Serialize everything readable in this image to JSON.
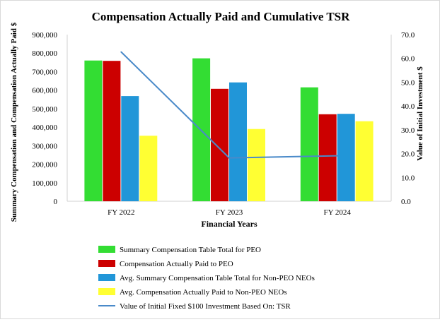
{
  "chart_data": {
    "type": "bar",
    "title": "Compensation Actually Paid and Cumulative TSR",
    "xlabel": "Financial Years",
    "ylabel": "Summary Compensation and Compensation Actually Paid $",
    "y2label": "Value of Initial Investment $",
    "categories": [
      "FY 2022",
      "FY 2023",
      "FY 2024"
    ],
    "ylim": [
      0,
      900000
    ],
    "y_ticks": [
      "0",
      "100,000",
      "200,000",
      "300,000",
      "400,000",
      "500,000",
      "600,000",
      "700,000",
      "800,000",
      "900,000"
    ],
    "y2lim": [
      0,
      70
    ],
    "y2_ticks": [
      "0.0",
      "10.0",
      "20.0",
      "30.0",
      "40.0",
      "50.0",
      "60.0",
      "70.0"
    ],
    "grid": false,
    "legend_position": "bottom",
    "series": [
      {
        "name": "Summary Compensation Table Total for PEO",
        "kind": "bar",
        "axis": "left",
        "color": "#33dd33",
        "values": [
          760000,
          772000,
          615000
        ]
      },
      {
        "name": "Compensation Actually Paid to PEO",
        "kind": "bar",
        "axis": "left",
        "color": "#cc0000",
        "values": [
          758000,
          607000,
          470000
        ]
      },
      {
        "name": "Avg. Summary Compensation Table Total for Non-PEO NEOs",
        "kind": "bar",
        "axis": "left",
        "color": "#2196d8",
        "values": [
          568000,
          642000,
          472000
        ]
      },
      {
        "name": "Avg. Compensation Actually Paid to Non-PEO NEOs",
        "kind": "bar",
        "axis": "left",
        "color": "#ffff33",
        "values": [
          354000,
          390000,
          432000
        ]
      },
      {
        "name": "Value of Initial Fixed $100 Investment Based On: TSR",
        "kind": "line",
        "axis": "right",
        "color": "#4a8ac9",
        "values": [
          62.7,
          18.2,
          19.1
        ]
      }
    ]
  }
}
